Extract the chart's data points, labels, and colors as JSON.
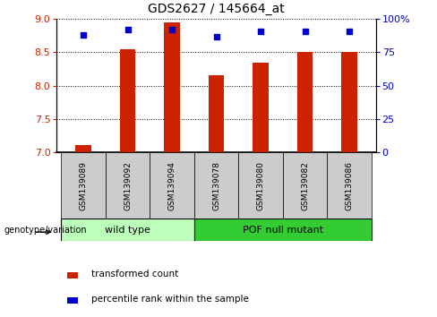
{
  "title": "GDS2627 / 145664_at",
  "samples": [
    "GSM139089",
    "GSM139092",
    "GSM139094",
    "GSM139078",
    "GSM139080",
    "GSM139082",
    "GSM139086"
  ],
  "red_values": [
    7.1,
    8.55,
    8.95,
    8.15,
    8.35,
    8.5,
    8.5
  ],
  "blue_values": [
    88,
    92,
    92,
    87,
    91,
    91,
    91
  ],
  "ylim_left": [
    7.0,
    9.0
  ],
  "ylim_right": [
    0,
    100
  ],
  "yticks_left": [
    7.0,
    7.5,
    8.0,
    8.5,
    9.0
  ],
  "yticks_right": [
    0,
    25,
    50,
    75,
    100
  ],
  "ytick_labels_right": [
    "0",
    "25",
    "50",
    "75",
    "100%"
  ],
  "group1_label": "wild type",
  "group2_label": "POF null mutant",
  "group1_indices": [
    0,
    1,
    2
  ],
  "group2_indices": [
    3,
    4,
    5,
    6
  ],
  "genotype_label": "genotype/variation",
  "legend1": "transformed count",
  "legend2": "percentile rank within the sample",
  "bar_color": "#cc2200",
  "dot_color": "#0000cc",
  "bar_bottom": 7.0,
  "bg_color": "#ffffff",
  "group_bg1": "#bbffbb",
  "group_bg2": "#33cc33",
  "sample_bg": "#cccccc",
  "bar_width": 0.35
}
